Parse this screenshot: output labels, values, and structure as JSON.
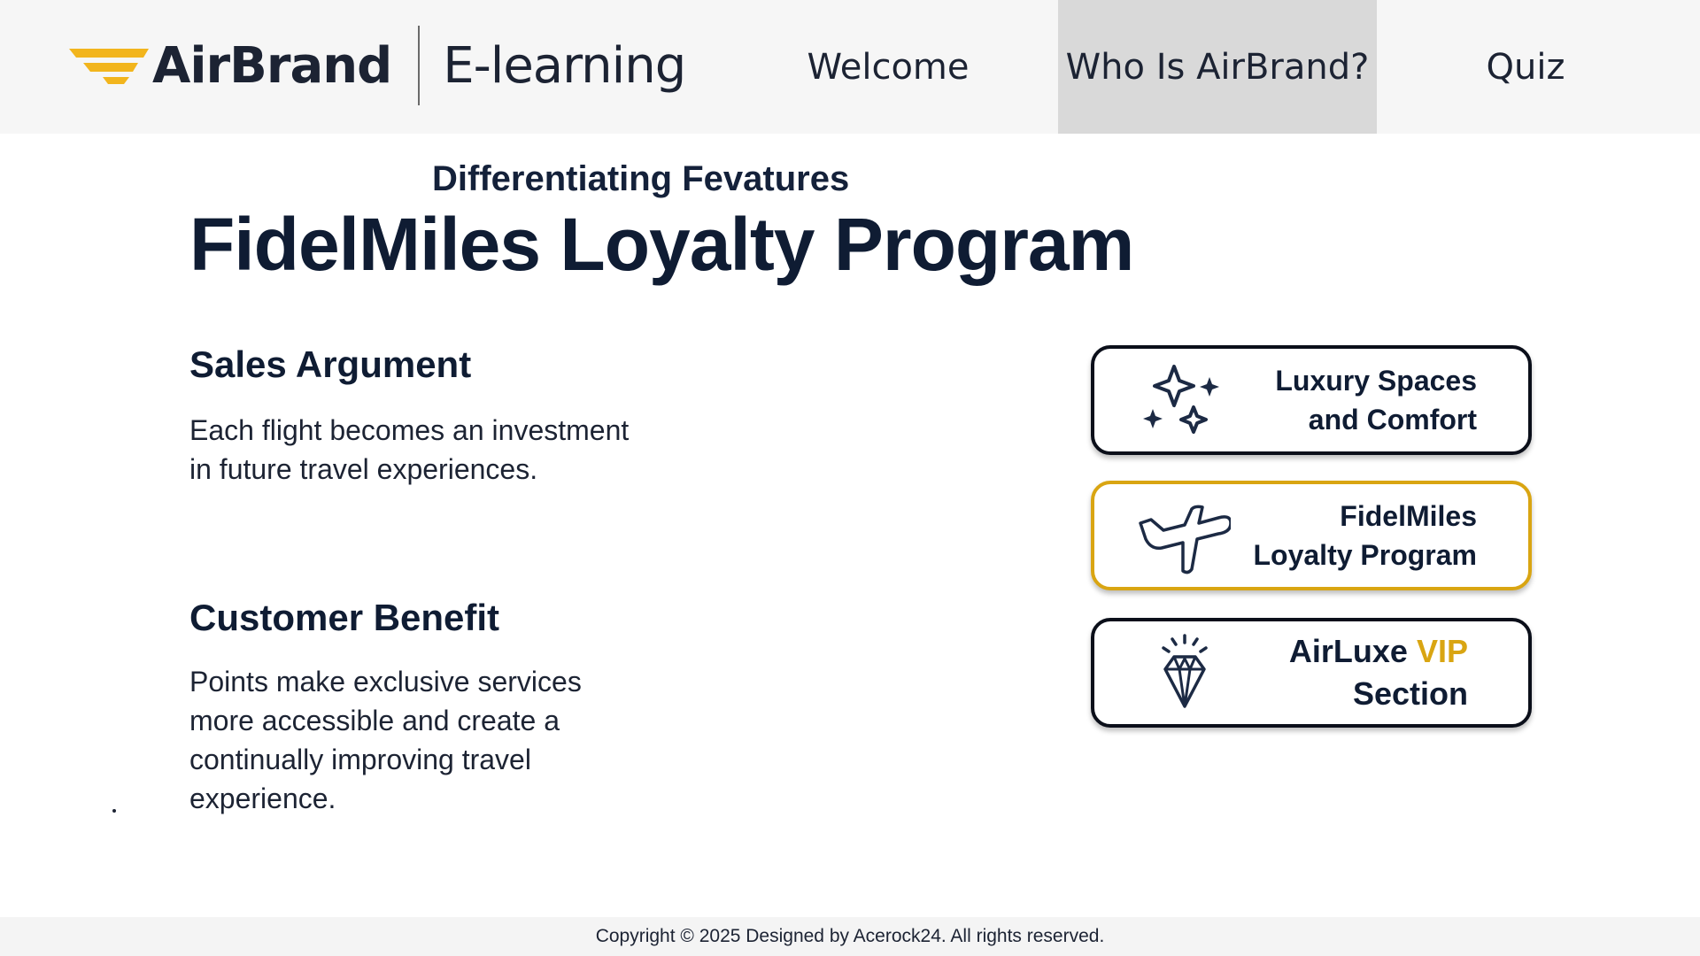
{
  "header": {
    "brand_name": "AirBrand",
    "brand_sub": "E-learning",
    "nav": [
      {
        "label": "Welcome",
        "active": false
      },
      {
        "label": "Who Is AirBrand?",
        "active": true
      },
      {
        "label": "Quiz",
        "active": false
      }
    ]
  },
  "main": {
    "eyebrow": "Differentiating Fevatures",
    "title": "FidelMiles Loyalty Program",
    "sales": {
      "heading": "Sales Argument",
      "body": "Each flight becomes an investment in future travel experiences."
    },
    "benefit": {
      "heading": "Customer Benefit",
      "body": "Points make exclusive services more accessible and create a continually improving travel experience."
    }
  },
  "cards": [
    {
      "icon": "sparkles-icon",
      "line1": "Luxury Spaces",
      "line2": "and Comfort",
      "active": false
    },
    {
      "icon": "airplane-icon",
      "line1": "FidelMiles",
      "line2": "Loyalty Program",
      "active": true
    },
    {
      "icon": "diamond-icon",
      "line1a": "AirLuxe",
      "line1b": "VIP",
      "line2": "Section",
      "active": false
    }
  ],
  "footer": {
    "text": "Copyright © 2025 Designed by Acerock24. All rights reserved."
  },
  "colors": {
    "accent": "#d9a512",
    "navy": "#0f1c33",
    "nav_active_bg": "#d9d9d9",
    "header_bg": "#f6f6f6"
  }
}
